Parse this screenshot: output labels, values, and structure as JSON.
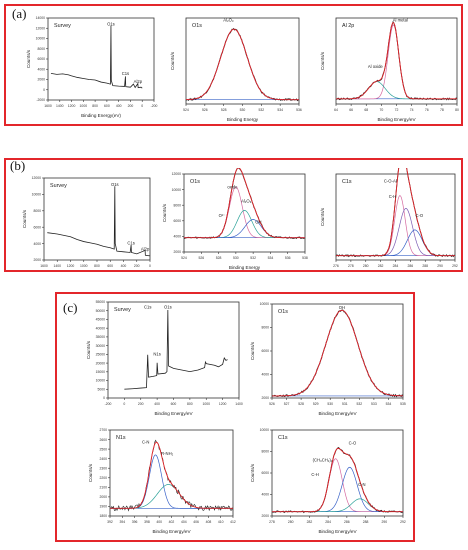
{
  "panels": [
    {
      "label": "(a)",
      "plots": [
        "a_survey",
        "a_o1s",
        "a_al2p"
      ]
    },
    {
      "label": "(b)",
      "plots": [
        "b_survey",
        "b_o1s",
        "b_c1s"
      ]
    },
    {
      "label": "(c)",
      "plots": [
        "c_survey",
        "c_o1s",
        "c_n1s",
        "c_c1s"
      ]
    }
  ],
  "colors": {
    "frame": "#e3262b",
    "raw": "#222222",
    "envelope": "#e3262b",
    "fit_blue": "#3a63c8",
    "fit_teal": "#2aa198",
    "fit_pink": "#d66aa0",
    "fit_purple": "#7b5bb3",
    "fit_green": "#4caf50",
    "background": "#3a63c8"
  },
  "chart_data": [
    {
      "id": "a_survey",
      "type": "line",
      "title": "Survey",
      "xlabel": "Binding Energy(eV)",
      "ylabel": "Counts/s",
      "xlim": [
        1600,
        -200
      ],
      "ylim": [
        -2000,
        14000
      ],
      "xticks": [
        "1600",
        "1400",
        "1200",
        "1000",
        "800",
        "600",
        "400",
        "200",
        "0",
        "-200"
      ],
      "yticks": [
        "14000",
        "12000",
        "10000",
        "8000",
        "6000",
        "4000",
        "2000",
        "0",
        "-2000"
      ],
      "annotations": [
        {
          "text": "O1s",
          "x": 531,
          "y": 12500
        },
        {
          "text": "C1s",
          "x": 285,
          "y": 2900
        },
        {
          "text": "Al2p",
          "x": 74,
          "y": 1300
        }
      ],
      "series": [
        {
          "kind": "survey",
          "points": [
            [
              1550,
              3200
            ],
            [
              1450,
              3000
            ],
            [
              1350,
              3100
            ],
            [
              1250,
              2900
            ],
            [
              1200,
              2700
            ],
            [
              1100,
              2400
            ],
            [
              1000,
              2200
            ],
            [
              900,
              2000
            ],
            [
              800,
              1900
            ],
            [
              700,
              1500
            ],
            [
              600,
              1300
            ],
            [
              540,
              1100
            ],
            [
              531,
              12500
            ],
            [
              525,
              1800
            ],
            [
              500,
              800
            ],
            [
              400,
              700
            ],
            [
              300,
              650
            ],
            [
              285,
              2600
            ],
            [
              280,
              600
            ],
            [
              200,
              500
            ],
            [
              150,
              1100
            ],
            [
              120,
              450
            ],
            [
              74,
              1200
            ],
            [
              70,
              400
            ],
            [
              20,
              500
            ],
            [
              0,
              300
            ]
          ]
        }
      ]
    },
    {
      "id": "a_o1s",
      "type": "line",
      "title": "O1s",
      "xlabel": "Binding Energy",
      "ylabel": "Counts/s",
      "xlim": [
        536,
        524
      ],
      "ylim": [
        0,
        1
      ],
      "xticks": [
        "524",
        "526",
        "528",
        "530",
        "532",
        "534",
        "536"
      ],
      "annotations": [
        {
          "text": "Al₂O₃",
          "x": 531.5,
          "y": 0.96
        }
      ],
      "peaks": [
        {
          "name": "",
          "center": 530.9,
          "width": 1.4,
          "height": 0.82,
          "color": "fit_blue"
        }
      ],
      "baseline": 0.05
    },
    {
      "id": "a_al2p",
      "type": "line",
      "title": "Al 2p",
      "xlabel": "Binding Energy/eV",
      "ylabel": "Counts/s",
      "xlim": [
        80,
        64
      ],
      "ylim": [
        0,
        1
      ],
      "xticks": [
        "64",
        "66",
        "68",
        "70",
        "72",
        "74",
        "76",
        "78",
        "80"
      ],
      "annotations": [
        {
          "text": "Al metal",
          "x": 71.5,
          "y": 0.96
        },
        {
          "text": "Al oxide",
          "x": 74.8,
          "y": 0.42
        }
      ],
      "peaks": [
        {
          "name": "Al metal",
          "center": 72.4,
          "width": 0.7,
          "height": 0.86,
          "color": "fit_pink"
        },
        {
          "name": "Al oxide",
          "center": 74.6,
          "width": 1.1,
          "height": 0.2,
          "color": "fit_teal"
        }
      ],
      "baseline": 0.06
    },
    {
      "id": "b_survey",
      "type": "line",
      "title": "Survey",
      "xlabel": "",
      "ylabel": "Counts/s",
      "xlim": [
        1600,
        0
      ],
      "ylim": [
        0,
        12000
      ],
      "xticks": [
        "1600",
        "1400",
        "1200",
        "1000",
        "800",
        "600",
        "400",
        "200",
        "0"
      ],
      "yticks": [
        "12000",
        "10000",
        "8000",
        "6000",
        "4000",
        "2000"
      ],
      "annotations": [
        {
          "text": "O1s",
          "x": 531,
          "y": 10800
        },
        {
          "text": "C1s",
          "x": 285,
          "y": 2300
        },
        {
          "text": "Al2p",
          "x": 74,
          "y": 1400
        }
      ],
      "series": [
        {
          "kind": "survey",
          "points": [
            [
              1550,
              4000
            ],
            [
              1400,
              3800
            ],
            [
              1300,
              3600
            ],
            [
              1200,
              3400
            ],
            [
              1100,
              3000
            ],
            [
              1000,
              2700
            ],
            [
              900,
              2500
            ],
            [
              800,
              2300
            ],
            [
              700,
              2000
            ],
            [
              600,
              1800
            ],
            [
              540,
              1600
            ],
            [
              531,
              10800
            ],
            [
              525,
              2400
            ],
            [
              500,
              1300
            ],
            [
              400,
              1200
            ],
            [
              300,
              1100
            ],
            [
              285,
              2200
            ],
            [
              280,
              1100
            ],
            [
              200,
              900
            ],
            [
              74,
              1400
            ],
            [
              70,
              700
            ],
            [
              0,
              600
            ]
          ]
        }
      ]
    },
    {
      "id": "b_o1s",
      "type": "line",
      "title": "O1s",
      "xlabel": "Binding Energy",
      "ylabel": "Counts/s",
      "xlim": [
        524,
        538
      ],
      "ylim": [
        0,
        12000
      ],
      "xticks": [
        "524",
        "526",
        "528",
        "530",
        "532",
        "534",
        "536",
        "538"
      ],
      "yticks": [
        "12000",
        "10000",
        "8000",
        "6000",
        "4000",
        "2000"
      ],
      "annotations": [
        {
          "text": "oxide",
          "x": 529.6,
          "y": 9800
        },
        {
          "text": "Al₂O₃",
          "x": 531.2,
          "y": 7600
        },
        {
          "text": "O²⁻",
          "x": 528.4,
          "y": 5400
        },
        {
          "text": "OH",
          "x": 532.6,
          "y": 4400
        }
      ],
      "peaks": [
        {
          "name": "oxide",
          "center": 530.0,
          "width": 0.75,
          "height": 7800,
          "color": "fit_pink"
        },
        {
          "name": "Al₂O₃",
          "center": 531.0,
          "width": 0.85,
          "height": 4200,
          "color": "fit_teal"
        },
        {
          "name": "OH",
          "center": 532.0,
          "width": 0.95,
          "height": 2800,
          "color": "fit_blue"
        }
      ],
      "baseline": 2200
    },
    {
      "id": "b_c1s",
      "type": "line",
      "title": "C1s",
      "xlabel": "",
      "ylabel": "Counts/s",
      "xlim": [
        276,
        292
      ],
      "ylim": [
        0,
        1
      ],
      "xticks": [
        "276",
        "278",
        "280",
        "282",
        "284",
        "286",
        "288",
        "290",
        "292"
      ],
      "annotations": [
        {
          "text": "C-O-Al",
          "x": 283.3,
          "y": 0.9
        },
        {
          "text": "C-H",
          "x": 283.6,
          "y": 0.72
        },
        {
          "text": "C-O",
          "x": 287.2,
          "y": 0.5
        }
      ],
      "peaks": [
        {
          "name": "C-H",
          "center": 284.6,
          "width": 0.7,
          "height": 0.7,
          "color": "fit_pink"
        },
        {
          "name": "C-O-Al",
          "center": 285.4,
          "width": 0.9,
          "height": 0.55,
          "color": "fit_purple"
        },
        {
          "name": "C-O",
          "center": 286.6,
          "width": 1.0,
          "height": 0.3,
          "color": "fit_blue"
        }
      ],
      "baseline": 0.05
    },
    {
      "id": "c_survey",
      "type": "line",
      "title": "Survey",
      "xlabel": "Binding Energy/eV",
      "ylabel": "Counts/s",
      "xlim": [
        -200,
        1400
      ],
      "ylim": [
        -5000,
        55000
      ],
      "xticks": [
        "-200",
        "0",
        "200",
        "400",
        "600",
        "800",
        "1000",
        "1200",
        "1400"
      ],
      "yticks": [
        "55000",
        "50000",
        "45000",
        "40000",
        "35000",
        "30000",
        "25000",
        "20000",
        "15000",
        "10000",
        "5000",
        "0"
      ],
      "annotations": [
        {
          "text": "C1s",
          "x": 285,
          "y": 51000
        },
        {
          "text": "O1s",
          "x": 531,
          "y": 51000
        },
        {
          "text": "N1s",
          "x": 400,
          "y": 21500
        }
      ],
      "series": [
        {
          "kind": "survey",
          "points": [
            [
              0,
              500
            ],
            [
              100,
              800
            ],
            [
              200,
              1200
            ],
            [
              270,
              1500
            ],
            [
              285,
              22000
            ],
            [
              295,
              8000
            ],
            [
              350,
              8500
            ],
            [
              395,
              9000
            ],
            [
              400,
              17000
            ],
            [
              410,
              10000
            ],
            [
              500,
              10500
            ],
            [
              520,
              11500
            ],
            [
              531,
              50000
            ],
            [
              540,
              15000
            ],
            [
              600,
              13500
            ],
            [
              700,
              12500
            ],
            [
              800,
              11500
            ],
            [
              900,
              12500
            ],
            [
              980,
              14000
            ],
            [
              990,
              17500
            ],
            [
              1000,
              16500
            ],
            [
              1100,
              15500
            ],
            [
              1150,
              14500
            ],
            [
              1200,
              16000
            ],
            [
              1220,
              20000
            ],
            [
              1240,
              18500
            ],
            [
              1260,
              19000
            ]
          ]
        }
      ]
    },
    {
      "id": "c_o1s",
      "type": "line",
      "title": "O1s",
      "xlabel": "Binding Energy/eV",
      "ylabel": "Counts/s",
      "xlim": [
        526,
        535
      ],
      "ylim": [
        2000,
        11000
      ],
      "xticks": [
        "526",
        "527",
        "528",
        "529",
        "530",
        "531",
        "532",
        "533",
        "534",
        "535"
      ],
      "yticks": [
        "10000",
        "8000",
        "6000",
        "4000",
        "2000"
      ],
      "annotations": [
        {
          "text": "OH",
          "x": 530.8,
          "y": 10500
        }
      ],
      "peaks": [
        {
          "name": "OH",
          "center": 530.8,
          "width": 1.1,
          "height": 8200,
          "color": "fit_blue"
        }
      ],
      "baseline": 2200
    },
    {
      "id": "c_n1s",
      "type": "line",
      "title": "N1s",
      "xlabel": "Binding Energy/eV",
      "ylabel": "Counts/s",
      "xlim": [
        392,
        412
      ],
      "ylim": [
        1800,
        2700
      ],
      "xticks": [
        "392",
        "394",
        "396",
        "398",
        "400",
        "402",
        "404",
        "406",
        "408",
        "410",
        "412"
      ],
      "yticks": [
        "2700",
        "2600",
        "2500",
        "2400",
        "2300",
        "2200",
        "2100",
        "2000",
        "1900",
        "1800"
      ],
      "annotations": [
        {
          "text": "C-N",
          "x": 397.8,
          "y": 2560
        },
        {
          "text": "R-NH₂",
          "x": 401.3,
          "y": 2440
        }
      ],
      "peaks": [
        {
          "name": "C-N",
          "center": 399.4,
          "width": 1.0,
          "height": 560,
          "color": "fit_blue"
        },
        {
          "name": "R-NH₂",
          "center": 401.5,
          "width": 1.8,
          "height": 250,
          "color": "fit_teal"
        }
      ],
      "baseline": 1880,
      "noisy": true
    },
    {
      "id": "c_c1s",
      "type": "line",
      "title": "C1s",
      "xlabel": "Binding Energy/eV",
      "ylabel": "Counts/s",
      "xlim": [
        278,
        292
      ],
      "ylim": [
        0,
        12000
      ],
      "xticks": [
        "278",
        "280",
        "282",
        "284",
        "286",
        "288",
        "290",
        "292"
      ],
      "yticks": [
        "10000",
        "8000",
        "6000",
        "4000",
        "2000"
      ],
      "annotations": [
        {
          "text": "C-O",
          "x": 286.6,
          "y": 10000
        },
        {
          "text": "(CH₃CH₂)₂",
          "x": 283.4,
          "y": 7600
        },
        {
          "text": "C-H",
          "x": 282.6,
          "y": 5600
        },
        {
          "text": "C-N",
          "x": 287.6,
          "y": 4200
        }
      ],
      "peaks": [
        {
          "name": "C-H",
          "center": 284.8,
          "width": 0.7,
          "height": 7400,
          "color": "fit_pink"
        },
        {
          "name": "C-O",
          "center": 286.3,
          "width": 0.8,
          "height": 6200,
          "color": "fit_blue"
        },
        {
          "name": "C-N",
          "center": 287.4,
          "width": 0.9,
          "height": 1800,
          "color": "fit_teal"
        }
      ],
      "baseline": 600
    }
  ]
}
